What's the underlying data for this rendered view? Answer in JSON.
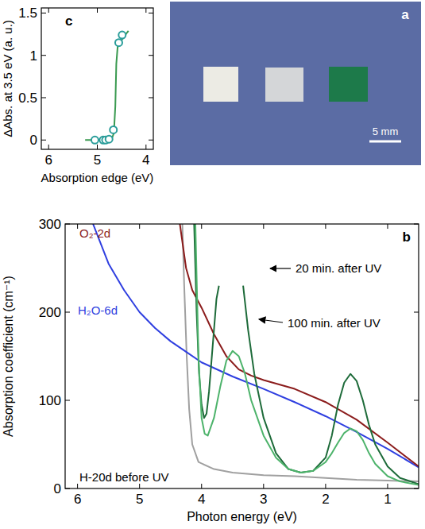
{
  "chart_data": [
    {
      "type": "scatter",
      "title": "c",
      "x_label": "Absorption edge (eV)",
      "y_label": "ΔAbs. at 3.5 eV (a. u.)",
      "xlim": [
        6.15,
        3.85
      ],
      "ylim": [
        -0.11,
        1.56
      ],
      "xticks": [
        6,
        5,
        4
      ],
      "yticks": [
        0,
        0.5,
        1,
        1.5
      ],
      "series": [
        {
          "type": "line",
          "color": "#3a9a50",
          "x": [
            5.25,
            5.0,
            4.8,
            4.7,
            4.66,
            4.63,
            4.61,
            4.58,
            4.55,
            4.5,
            4.45,
            4.4,
            4.36
          ],
          "values": [
            0,
            0,
            0,
            0.02,
            0.08,
            0.4,
            0.9,
            1.12,
            1.15,
            1.18,
            1.22,
            1.26,
            1.29
          ]
        },
        {
          "type": "scatter",
          "marker": "circle",
          "color": "#2a9d9a",
          "x": [
            5.05,
            4.88,
            4.83,
            4.76,
            4.67,
            4.56,
            4.49
          ],
          "values": [
            0,
            0,
            0,
            0.01,
            0.12,
            1.15,
            1.24
          ]
        }
      ]
    },
    {
      "type": "line",
      "title": "b",
      "x_label": "Photon energy (eV)",
      "y_label": "Absorption coefficient (cm⁻¹)",
      "xlim": [
        6.2,
        0.5
      ],
      "ylim": [
        0,
        300
      ],
      "xticks": [
        6,
        5,
        4,
        3,
        2,
        1
      ],
      "yticks": [
        0,
        100,
        200,
        300
      ],
      "series": [
        {
          "name": "H-20d before UV",
          "color": "#a0a0a0",
          "x": [
            4.31,
            4.28,
            4.24,
            4.2,
            4.15,
            4.05,
            3.8,
            3.5,
            3.0,
            2.5,
            2.0,
            1.5,
            1.0,
            0.5
          ],
          "values": [
            300,
            230,
            150,
            90,
            50,
            30,
            22,
            18,
            15,
            14,
            12,
            10,
            9,
            8
          ]
        },
        {
          "name": "H₂O-6d",
          "color": "#2f3fe0",
          "x": [
            5.75,
            5.5,
            5.25,
            5.0,
            4.75,
            4.5,
            4.25,
            4.0,
            3.5,
            3.0,
            2.5,
            2.0,
            1.5,
            1.0,
            0.5
          ],
          "values": [
            300,
            255,
            225,
            200,
            182,
            167,
            155,
            143,
            127,
            113,
            98,
            82,
            64,
            45,
            24
          ]
        },
        {
          "name": "O₂-2d",
          "color": "#8b1c1c",
          "x": [
            4.35,
            4.25,
            4.15,
            4.0,
            3.8,
            3.6,
            3.4,
            3.2,
            3.0,
            2.5,
            2.0,
            1.5,
            1.0,
            0.5
          ],
          "values": [
            300,
            250,
            225,
            205,
            175,
            150,
            135,
            128,
            123,
            113,
            98,
            78,
            52,
            25
          ]
        },
        {
          "name": "20 min. after UV",
          "color": "#1e6b3a",
          "x": [
            4.12,
            4.08,
            4.04,
            4.0,
            3.96,
            3.92,
            3.88,
            3.84,
            3.8,
            3.76,
            3.72,
            3.5,
            3.33,
            3.25,
            3.15,
            3.0,
            2.8,
            2.6,
            2.4,
            2.2,
            2.0,
            1.9,
            1.8,
            1.7,
            1.6,
            1.5,
            1.4,
            1.3,
            1.2,
            1.0,
            0.8,
            0.5
          ],
          "values": [
            300,
            200,
            130,
            95,
            80,
            85,
            110,
            145,
            180,
            215,
            230,
            null,
            230,
            180,
            130,
            80,
            40,
            22,
            18,
            20,
            35,
            60,
            95,
            120,
            130,
            122,
            100,
            72,
            50,
            25,
            12,
            5
          ]
        },
        {
          "name": "100 min. after UV",
          "color": "#4db36b",
          "x": [
            4.1,
            4.05,
            4.0,
            3.95,
            3.9,
            3.8,
            3.7,
            3.6,
            3.5,
            3.4,
            3.3,
            3.2,
            3.0,
            2.8,
            2.6,
            2.4,
            2.2,
            2.0,
            1.9,
            1.8,
            1.7,
            1.6,
            1.5,
            1.4,
            1.3,
            1.2,
            1.0,
            0.8,
            0.5
          ],
          "values": [
            300,
            150,
            80,
            62,
            60,
            80,
            115,
            145,
            156,
            150,
            130,
            100,
            60,
            35,
            22,
            18,
            20,
            30,
            40,
            52,
            63,
            68,
            65,
            55,
            40,
            28,
            14,
            8,
            4
          ]
        }
      ]
    }
  ],
  "photo": {
    "label": "a",
    "scale_bar": "5 mm"
  }
}
